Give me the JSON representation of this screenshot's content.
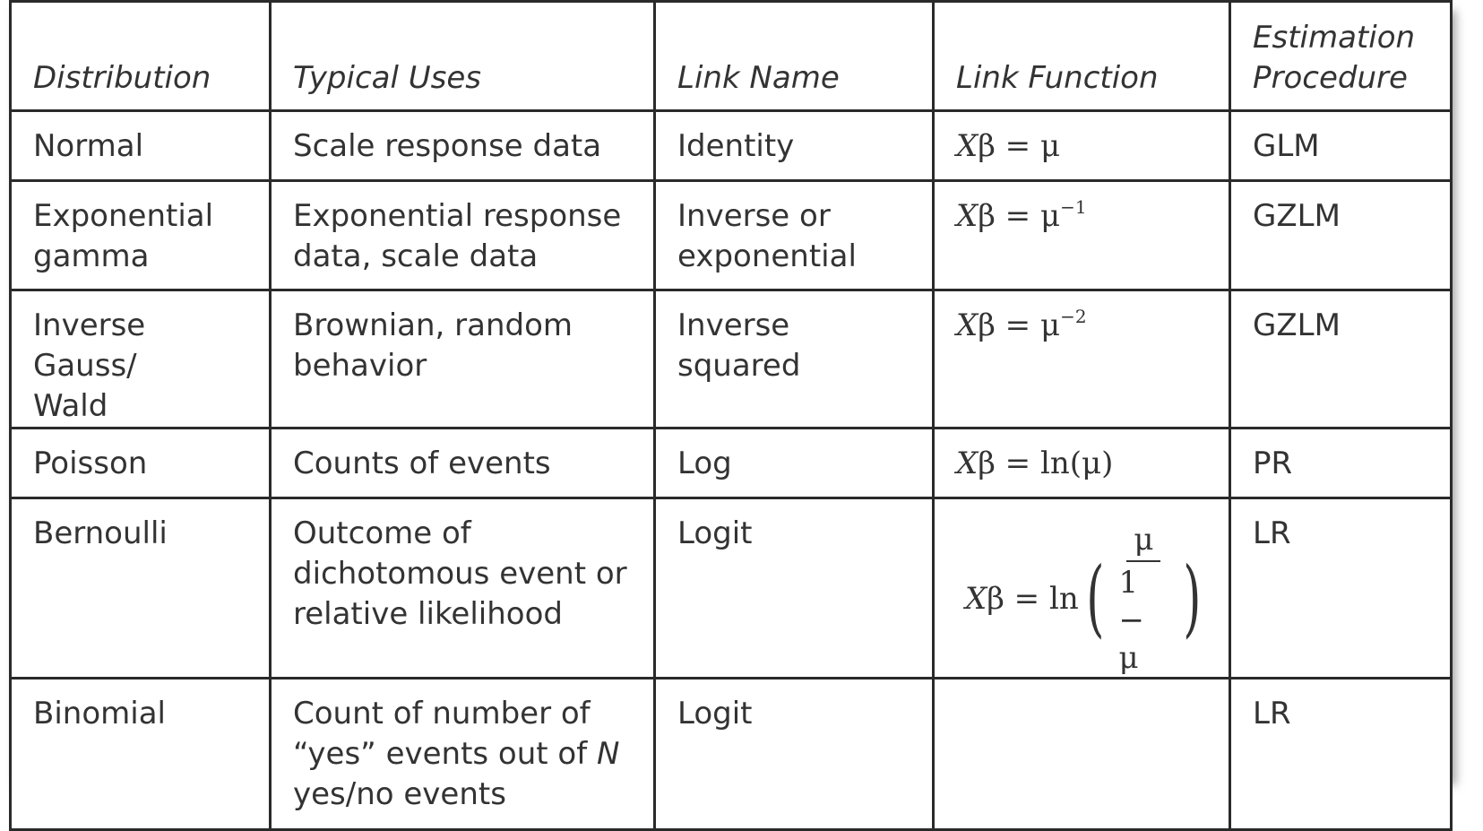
{
  "headers": {
    "distribution": "Distribution",
    "typical_uses": "Typical Uses",
    "link_name": "Link Name",
    "link_function": "Link Function",
    "estimation_line1": "Estimation",
    "estimation_line2": "Procedure"
  },
  "rows": [
    {
      "distribution": [
        "Normal"
      ],
      "uses": [
        "Scale response data"
      ],
      "link_name": [
        "Identity"
      ],
      "link_function": {
        "lhs_var": "X",
        "lhs_sym": "β",
        "eq": " = ",
        "rhs": "μ",
        "sup": ""
      },
      "estimation": "GLM"
    },
    {
      "distribution": [
        "Exponential",
        "gamma"
      ],
      "uses": [
        "Exponential response",
        "data, scale data"
      ],
      "link_name": [
        "Inverse or",
        "exponential"
      ],
      "link_function": {
        "lhs_var": "X",
        "lhs_sym": "β",
        "eq": " = ",
        "rhs": "μ",
        "sup": "−1"
      },
      "estimation": "GZLM"
    },
    {
      "distribution": [
        "Inverse Gauss/",
        "Wald"
      ],
      "uses": [
        "Brownian, random",
        "behavior"
      ],
      "link_name": [
        "Inverse squared"
      ],
      "link_function": {
        "lhs_var": "X",
        "lhs_sym": "β",
        "eq": " = ",
        "rhs": "μ",
        "sup": "−2"
      },
      "estimation": "GZLM"
    },
    {
      "distribution": [
        "Poisson"
      ],
      "uses": [
        "Counts of events"
      ],
      "link_name": [
        "Log"
      ],
      "link_function": {
        "lhs_var": "X",
        "lhs_sym": "β",
        "eq": " = ",
        "rhs": "ln(μ)",
        "sup": ""
      },
      "estimation": "PR"
    },
    {
      "distribution": [
        "Bernoulli"
      ],
      "uses": [
        "Outcome of",
        "dichotomous event or",
        "relative likelihood"
      ],
      "link_name": [
        "Logit"
      ],
      "link_function": {
        "lhs_var": "X",
        "lhs_sym": "β",
        "eq": " = ",
        "ln": "ln",
        "lparen": "(",
        "numerator": "μ",
        "denominator": "1 − μ",
        "rparen": ")"
      },
      "estimation": "LR"
    },
    {
      "distribution": [
        "Binomial"
      ],
      "uses_a": "Count of number of",
      "uses_b": "“yes” events out of ",
      "uses_b_var": "N",
      "uses_c": "yes/no events",
      "link_name": [
        "Logit"
      ],
      "estimation": "LR"
    }
  ]
}
